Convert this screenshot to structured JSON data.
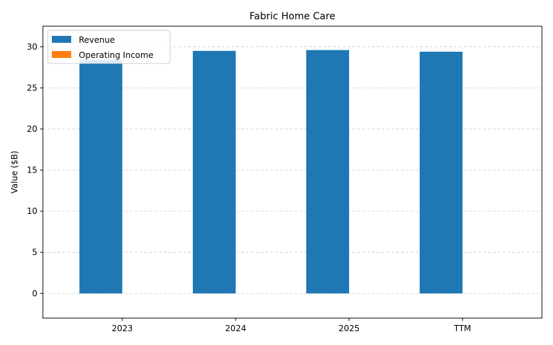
{
  "chart_data": {
    "type": "bar",
    "title": "Fabric Home Care",
    "xlabel": "",
    "ylabel": "Value ($B)",
    "categories": [
      "2023",
      "2024",
      "2025",
      "TTM"
    ],
    "series": [
      {
        "name": "Revenue",
        "color": "#1f77b4",
        "values": [
          28.4,
          29.5,
          29.6,
          29.4
        ]
      },
      {
        "name": "Operating Income",
        "color": "#ff7f0e",
        "values": [
          0,
          0,
          0,
          0
        ]
      }
    ],
    "ylim": [
      -3,
      32.5
    ],
    "yticks": [
      0,
      5,
      10,
      15,
      20,
      25,
      30
    ],
    "grid": true,
    "legend_position": "top-left"
  }
}
